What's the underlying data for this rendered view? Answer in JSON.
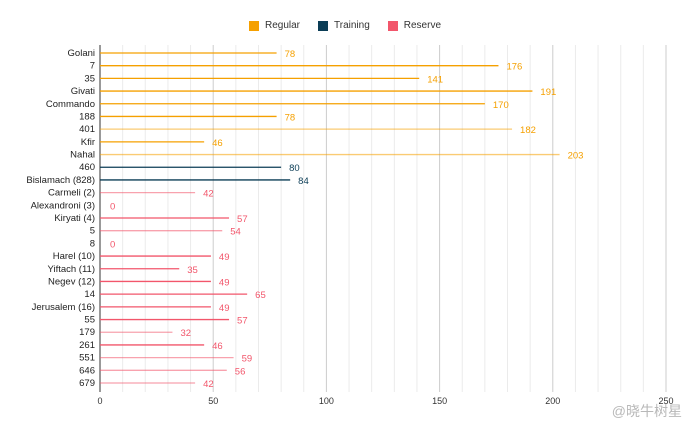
{
  "chart_data": {
    "type": "bar",
    "orientation": "horizontal",
    "categories": [
      "Golani",
      "7",
      "35",
      "Givati",
      "Commando",
      "188",
      "401",
      "Kfir",
      "Nahal",
      "460",
      "Bislamach (828)",
      "Carmeli (2)",
      "Alexandroni (3)",
      "Kiryati (4)",
      "5",
      "8",
      "Harel (10)",
      "Yiftach (11)",
      "Negev (12)",
      "14",
      "Jerusalem (16)",
      "55",
      "179",
      "261",
      "551",
      "646",
      "679"
    ],
    "values": [
      78,
      176,
      141,
      191,
      170,
      78,
      182,
      46,
      203,
      80,
      84,
      42,
      0,
      57,
      54,
      0,
      49,
      35,
      49,
      65,
      49,
      57,
      32,
      46,
      59,
      56,
      42
    ],
    "groups": [
      "Regular",
      "Regular",
      "Regular",
      "Regular",
      "Regular",
      "Regular",
      "Regular",
      "Regular",
      "Regular",
      "Training",
      "Training",
      "Reserve",
      "Reserve",
      "Reserve",
      "Reserve",
      "Reserve",
      "Reserve",
      "Reserve",
      "Reserve",
      "Reserve",
      "Reserve",
      "Reserve",
      "Reserve",
      "Reserve",
      "Reserve",
      "Reserve",
      "Reserve"
    ],
    "legend": [
      {
        "name": "Regular",
        "color": "#f5a000"
      },
      {
        "name": "Training",
        "color": "#0b3d56"
      },
      {
        "name": "Reserve",
        "color": "#f2566b"
      }
    ],
    "legend_position": "top",
    "xlim": [
      0,
      250
    ],
    "xticks": [
      0,
      50,
      100,
      150,
      200,
      250
    ],
    "grid": true,
    "data_labels": true
  },
  "watermark": "@晓牛树星"
}
